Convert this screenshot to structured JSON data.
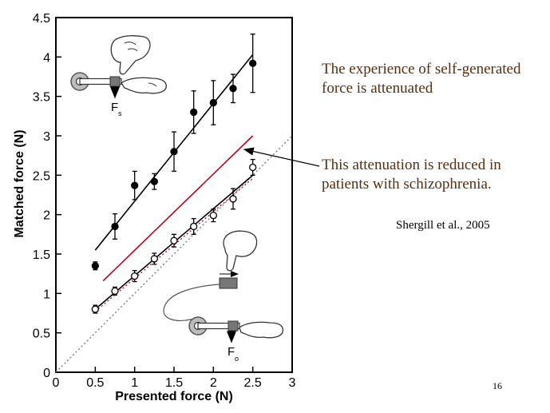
{
  "annotations": {
    "main": "The experience of self-generated force is attenuated",
    "patients": "This attenuation is reduced in patients with schizophrenia.",
    "citation": "Shergill et al., 2005",
    "slide_number": "16"
  },
  "chart_data": {
    "type": "scatter",
    "title": "",
    "xlabel": "Presented force (N)",
    "ylabel": "Matched force (N)",
    "xlim": [
      0,
      3
    ],
    "ylim": [
      0,
      4.5
    ],
    "x_ticks": [
      "0",
      "0.5",
      "1",
      "1.5",
      "2",
      "2.5",
      "3"
    ],
    "y_ticks": [
      "0",
      "0.5",
      "1",
      "1.5",
      "2",
      "2.5",
      "3",
      "3.5",
      "4",
      "4.5"
    ],
    "grid": false,
    "series": [
      {
        "marker": "filled-circle",
        "color": "#000000",
        "points": [
          {
            "x": 0.5,
            "y": 1.35,
            "err": 0.05
          },
          {
            "x": 0.75,
            "y": 1.85,
            "err": 0.16
          },
          {
            "x": 1.0,
            "y": 2.37,
            "err": 0.18
          },
          {
            "x": 1.25,
            "y": 2.42,
            "err": 0.1
          },
          {
            "x": 1.5,
            "y": 2.8,
            "err": 0.25
          },
          {
            "x": 1.75,
            "y": 3.3,
            "err": 0.27
          },
          {
            "x": 2.0,
            "y": 3.42,
            "err": 0.28
          },
          {
            "x": 2.25,
            "y": 3.6,
            "err": 0.18
          },
          {
            "x": 2.5,
            "y": 3.92,
            "err": 0.37
          }
        ],
        "fit_line": {
          "x": [
            0.5,
            2.5
          ],
          "y": [
            1.55,
            4.03
          ],
          "color": "#000000"
        }
      },
      {
        "marker": "open-circle",
        "color": "#000000",
        "points": [
          {
            "x": 0.5,
            "y": 0.8,
            "err": 0.05
          },
          {
            "x": 0.75,
            "y": 1.03,
            "err": 0.05
          },
          {
            "x": 1.0,
            "y": 1.22,
            "err": 0.07
          },
          {
            "x": 1.25,
            "y": 1.44,
            "err": 0.07
          },
          {
            "x": 1.5,
            "y": 1.67,
            "err": 0.08
          },
          {
            "x": 1.75,
            "y": 1.85,
            "err": 0.1
          },
          {
            "x": 2.0,
            "y": 1.99,
            "err": 0.08
          },
          {
            "x": 2.25,
            "y": 2.2,
            "err": 0.13
          },
          {
            "x": 2.5,
            "y": 2.6,
            "err": 0.1
          }
        ],
        "fit_line": {
          "x": [
            0.5,
            2.5
          ],
          "y": [
            0.8,
            2.5
          ],
          "color": "#000000"
        }
      }
    ],
    "reference_lines": [
      {
        "style": "solid",
        "color": "#c0001a",
        "x": [
          0.6,
          2.5
        ],
        "y": [
          1.16,
          3.0
        ]
      },
      {
        "style": "dotted",
        "color": "#c0001a",
        "x": [
          0.5,
          2.5
        ],
        "y": [
          0.77,
          2.46
        ]
      },
      {
        "style": "dotted",
        "color": "#777777",
        "x": [
          0.0,
          3.0
        ],
        "y": [
          0.0,
          3.0
        ]
      }
    ],
    "diagram_labels": {
      "top": "F",
      "bottom": "F",
      "top_sub": "s",
      "bottom_sub": "o"
    }
  }
}
